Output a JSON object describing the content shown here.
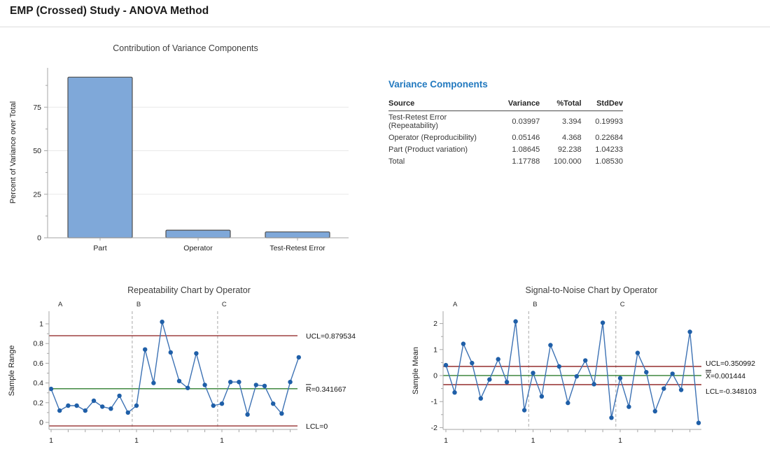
{
  "header": {
    "title": "EMP (Crossed) Study - ANOVA Method"
  },
  "variance_components": {
    "heading": "Variance Components",
    "columns": [
      "Source",
      "Variance",
      "%Total",
      "StdDev"
    ],
    "rows": [
      [
        "Test-Retest Error (Repeatability)",
        "0.03997",
        "3.394",
        "0.19993"
      ],
      [
        "Operator (Reproducibility)",
        "0.05146",
        "4.368",
        "0.22684"
      ],
      [
        "Part (Product variation)",
        "1.08645",
        "92.238",
        "1.04233"
      ],
      [
        "Total",
        "1.17788",
        "100.000",
        "1.08530"
      ]
    ]
  },
  "chart_data": [
    {
      "type": "bar",
      "title": "Contribution of Variance Components",
      "ylabel": "Percent of Variance over Total",
      "categories": [
        "Part",
        "Operator",
        "Test-Retest Error"
      ],
      "values": [
        92.238,
        4.368,
        3.394
      ],
      "ylim": [
        0,
        100
      ],
      "yticks": [
        0,
        25,
        50,
        75
      ],
      "grid": true
    },
    {
      "type": "line",
      "subtype": "control-chart",
      "title": "Repeatability Chart by Operator",
      "ylabel": "Sample Range",
      "x_start_label": "1",
      "yticks": [
        0,
        0.2,
        0.4,
        0.6,
        0.8,
        1
      ],
      "ylim": [
        0,
        1.1
      ],
      "groups": [
        {
          "label": "A",
          "values": [
            0.34,
            0.12,
            0.17,
            0.17,
            0.12,
            0.22,
            0.16,
            0.14,
            0.27,
            0.1
          ]
        },
        {
          "label": "B",
          "values": [
            0.17,
            0.74,
            0.4,
            1.02,
            0.71,
            0.42,
            0.35,
            0.7,
            0.38,
            0.17
          ]
        },
        {
          "label": "C",
          "values": [
            0.19,
            0.41,
            0.41,
            0.08,
            0.38,
            0.37,
            0.19,
            0.09,
            0.41,
            0.66
          ]
        }
      ],
      "limits": {
        "ucl": {
          "value": 0.879534,
          "label": "UCL=0.879534"
        },
        "center": {
          "value": 0.341667,
          "label": "R=0.341667",
          "overline": "single"
        },
        "lcl": {
          "value": 0,
          "label": "LCL=0"
        }
      }
    },
    {
      "type": "line",
      "subtype": "control-chart",
      "title": "Signal-to-Noise Chart by Operator",
      "ylabel": "Sample Mean",
      "x_start_label": "1",
      "yticks": [
        -2,
        -1,
        0,
        1,
        2
      ],
      "ylim": [
        -2.2,
        2.2
      ],
      "groups": [
        {
          "label": "A",
          "values": [
            0.4,
            -0.65,
            1.22,
            0.48,
            -0.88,
            -0.15,
            0.63,
            -0.25,
            2.08,
            -1.33
          ]
        },
        {
          "label": "B",
          "values": [
            0.1,
            -0.8,
            1.17,
            0.35,
            -1.05,
            -0.03,
            0.58,
            -0.33,
            2.03,
            -1.62
          ]
        },
        {
          "label": "C",
          "values": [
            -0.1,
            -1.2,
            0.87,
            0.13,
            -1.37,
            -0.5,
            0.07,
            -0.55,
            1.68,
            -1.82
          ]
        }
      ],
      "limits": {
        "ucl": {
          "value": 0.350992,
          "label": "UCL=0.350992"
        },
        "center": {
          "value": 0.001444,
          "label": "X=0.001444",
          "overline": "double"
        },
        "lcl": {
          "value": -0.348103,
          "label": "LCL=-0.348103"
        }
      }
    }
  ],
  "colors": {
    "bar_fill": "#7fa8d9",
    "bar_border": "#4f4f4f",
    "limit_line": "#8b1a1a",
    "center_line": "#2e7d2e",
    "series_line": "#3d72b4",
    "marker": "#1f5fa8",
    "heading_blue": "#2279bf"
  }
}
